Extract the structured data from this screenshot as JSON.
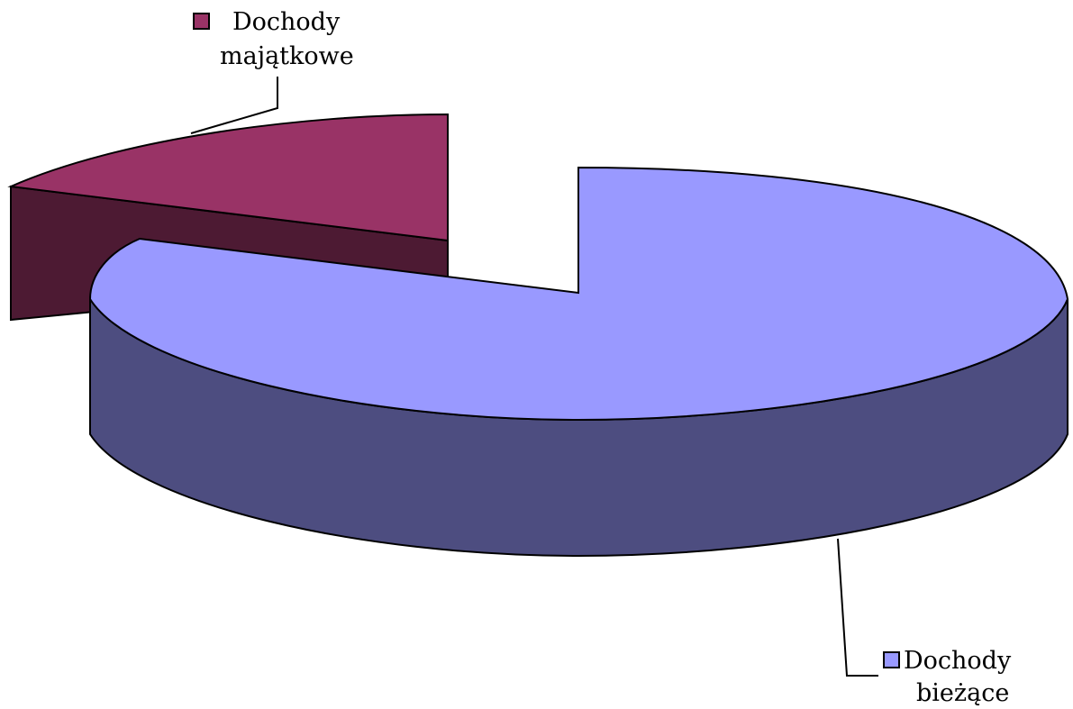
{
  "chart_data": {
    "type": "pie",
    "style": "3d-exploded",
    "series": [
      {
        "name": "",
        "slices": [
          {
            "label_line1": "Dochody",
            "label_line2": "majątkowe",
            "value": 0.19,
            "color": "#993366",
            "side_color": "#4d1a33"
          },
          {
            "label_line1": "Dochody",
            "label_line2": "bieżące",
            "value": 0.81,
            "color": "#9999ff",
            "side_color": "#4d4d80"
          }
        ]
      }
    ],
    "labels_with_legend_key": true
  }
}
